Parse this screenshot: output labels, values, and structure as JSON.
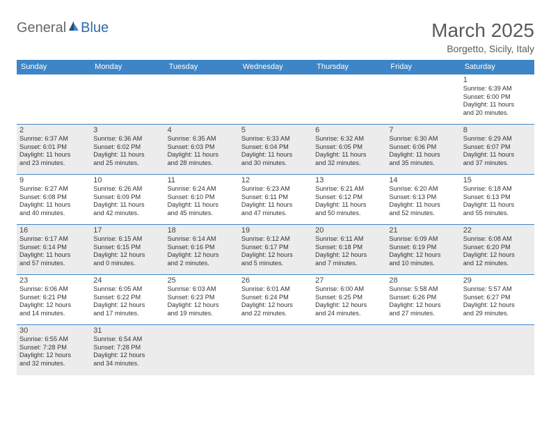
{
  "brand": {
    "part1": "General",
    "part2": "Blue"
  },
  "title": "March 2025",
  "subtitle": "Borgetto, Sicily, Italy",
  "colors": {
    "header_bg": "#3d85c6",
    "header_text": "#ffffff",
    "cell_border": "#3d85c6",
    "shaded_bg": "#ececec",
    "page_bg": "#ffffff",
    "title_color": "#5a5a5a",
    "text_color": "#333333"
  },
  "typography": {
    "title_fontsize": 28,
    "subtitle_fontsize": 14,
    "header_fontsize": 11,
    "daynum_fontsize": 11,
    "info_fontsize": 9.2
  },
  "days": [
    "Sunday",
    "Monday",
    "Tuesday",
    "Wednesday",
    "Thursday",
    "Friday",
    "Saturday"
  ],
  "weeks": [
    [
      null,
      null,
      null,
      null,
      null,
      null,
      {
        "n": "1",
        "sr": "6:39 AM",
        "ss": "6:00 PM",
        "dh": "11",
        "dm": "20"
      }
    ],
    [
      {
        "n": "2",
        "sr": "6:37 AM",
        "ss": "6:01 PM",
        "dh": "11",
        "dm": "23"
      },
      {
        "n": "3",
        "sr": "6:36 AM",
        "ss": "6:02 PM",
        "dh": "11",
        "dm": "25"
      },
      {
        "n": "4",
        "sr": "6:35 AM",
        "ss": "6:03 PM",
        "dh": "11",
        "dm": "28"
      },
      {
        "n": "5",
        "sr": "6:33 AM",
        "ss": "6:04 PM",
        "dh": "11",
        "dm": "30"
      },
      {
        "n": "6",
        "sr": "6:32 AM",
        "ss": "6:05 PM",
        "dh": "11",
        "dm": "32"
      },
      {
        "n": "7",
        "sr": "6:30 AM",
        "ss": "6:06 PM",
        "dh": "11",
        "dm": "35"
      },
      {
        "n": "8",
        "sr": "6:29 AM",
        "ss": "6:07 PM",
        "dh": "11",
        "dm": "37"
      }
    ],
    [
      {
        "n": "9",
        "sr": "6:27 AM",
        "ss": "6:08 PM",
        "dh": "11",
        "dm": "40"
      },
      {
        "n": "10",
        "sr": "6:26 AM",
        "ss": "6:09 PM",
        "dh": "11",
        "dm": "42"
      },
      {
        "n": "11",
        "sr": "6:24 AM",
        "ss": "6:10 PM",
        "dh": "11",
        "dm": "45"
      },
      {
        "n": "12",
        "sr": "6:23 AM",
        "ss": "6:11 PM",
        "dh": "11",
        "dm": "47"
      },
      {
        "n": "13",
        "sr": "6:21 AM",
        "ss": "6:12 PM",
        "dh": "11",
        "dm": "50"
      },
      {
        "n": "14",
        "sr": "6:20 AM",
        "ss": "6:13 PM",
        "dh": "11",
        "dm": "52"
      },
      {
        "n": "15",
        "sr": "6:18 AM",
        "ss": "6:13 PM",
        "dh": "11",
        "dm": "55"
      }
    ],
    [
      {
        "n": "16",
        "sr": "6:17 AM",
        "ss": "6:14 PM",
        "dh": "11",
        "dm": "57"
      },
      {
        "n": "17",
        "sr": "6:15 AM",
        "ss": "6:15 PM",
        "dh": "12",
        "dm": "0"
      },
      {
        "n": "18",
        "sr": "6:14 AM",
        "ss": "6:16 PM",
        "dh": "12",
        "dm": "2"
      },
      {
        "n": "19",
        "sr": "6:12 AM",
        "ss": "6:17 PM",
        "dh": "12",
        "dm": "5"
      },
      {
        "n": "20",
        "sr": "6:11 AM",
        "ss": "6:18 PM",
        "dh": "12",
        "dm": "7"
      },
      {
        "n": "21",
        "sr": "6:09 AM",
        "ss": "6:19 PM",
        "dh": "12",
        "dm": "10"
      },
      {
        "n": "22",
        "sr": "6:08 AM",
        "ss": "6:20 PM",
        "dh": "12",
        "dm": "12"
      }
    ],
    [
      {
        "n": "23",
        "sr": "6:06 AM",
        "ss": "6:21 PM",
        "dh": "12",
        "dm": "14"
      },
      {
        "n": "24",
        "sr": "6:05 AM",
        "ss": "6:22 PM",
        "dh": "12",
        "dm": "17"
      },
      {
        "n": "25",
        "sr": "6:03 AM",
        "ss": "6:23 PM",
        "dh": "12",
        "dm": "19"
      },
      {
        "n": "26",
        "sr": "6:01 AM",
        "ss": "6:24 PM",
        "dh": "12",
        "dm": "22"
      },
      {
        "n": "27",
        "sr": "6:00 AM",
        "ss": "6:25 PM",
        "dh": "12",
        "dm": "24"
      },
      {
        "n": "28",
        "sr": "5:58 AM",
        "ss": "6:26 PM",
        "dh": "12",
        "dm": "27"
      },
      {
        "n": "29",
        "sr": "5:57 AM",
        "ss": "6:27 PM",
        "dh": "12",
        "dm": "29"
      }
    ],
    [
      {
        "n": "30",
        "sr": "6:55 AM",
        "ss": "7:28 PM",
        "dh": "12",
        "dm": "32"
      },
      {
        "n": "31",
        "sr": "6:54 AM",
        "ss": "7:28 PM",
        "dh": "12",
        "dm": "34"
      },
      null,
      null,
      null,
      null,
      null
    ]
  ],
  "labels": {
    "sunrise": "Sunrise:",
    "sunset": "Sunset:",
    "daylight": "Daylight:",
    "hours": "hours",
    "and": "and",
    "minutes": "minutes."
  }
}
